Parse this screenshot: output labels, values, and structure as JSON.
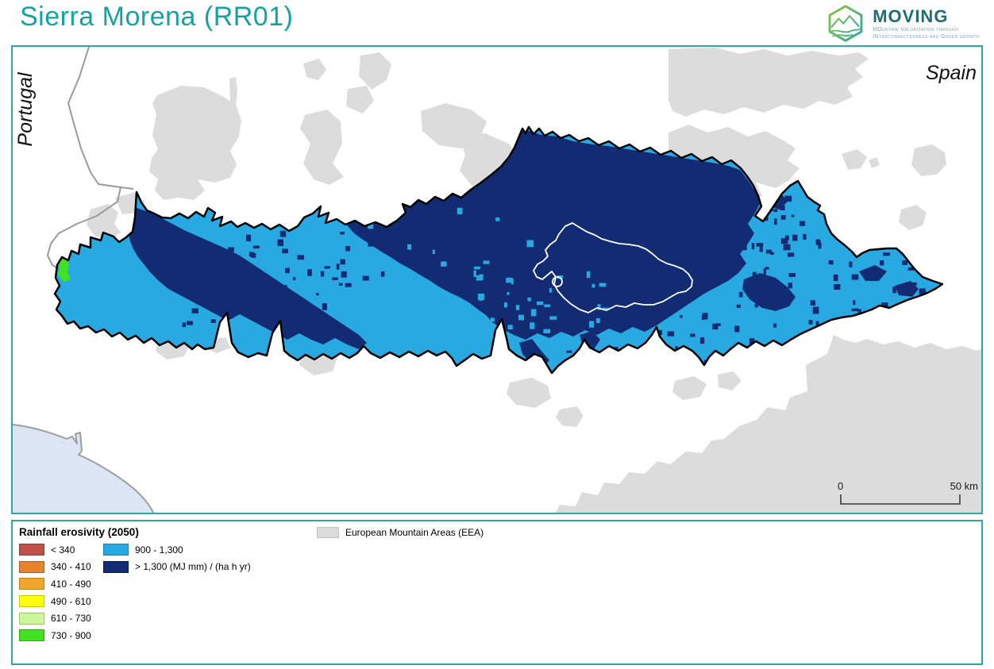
{
  "header": {
    "title": "Sierra Morena (RR01)"
  },
  "logo": {
    "brand": "MOVING",
    "subtitle_line1": "MOuntain Valorization through",
    "subtitle_line2": "INterconnectedness and Green growth"
  },
  "map": {
    "label_left_country": "Portugal",
    "label_right_country": "Spain",
    "scalebar": {
      "start_label": "0",
      "end_label": "50 km"
    }
  },
  "legend": {
    "title": "Rainfall erosivity (2050)",
    "items": [
      {
        "label": "< 340",
        "color": "#C0504A",
        "border": "#8E3A32"
      },
      {
        "label": "340 - 410",
        "color": "#E8832D",
        "border": "#B05E1C"
      },
      {
        "label": "410 - 490",
        "color": "#F0A52C",
        "border": "#BD7F17"
      },
      {
        "label": "490 - 610",
        "color": "#FDFD0D",
        "border": "#C9CB00"
      },
      {
        "label": "610 - 730",
        "color": "#CDF59B",
        "border": "#98C96A"
      },
      {
        "label": "730 - 900",
        "color": "#41E220",
        "border": "#2BAA12"
      },
      {
        "label": "900 - 1,300",
        "color": "#29A9E1",
        "border": "#1B7FB0"
      },
      {
        "label": "> 1,300 (MJ mm) / (ha h yr)",
        "color": "#132B72",
        "border": "#0A1A4C"
      }
    ],
    "eea": {
      "label": "European Mountain Areas (EEA)",
      "color": "#DCDCDC",
      "border": "#C2C2C2"
    }
  },
  "colors": {
    "accent_teal": "#14A3A0",
    "map_light_blue": "#29A9E1",
    "map_navy": "#132B72",
    "map_green": "#41E220",
    "map_gray": "#DCDCDC",
    "sea": "#DBE5F4"
  }
}
